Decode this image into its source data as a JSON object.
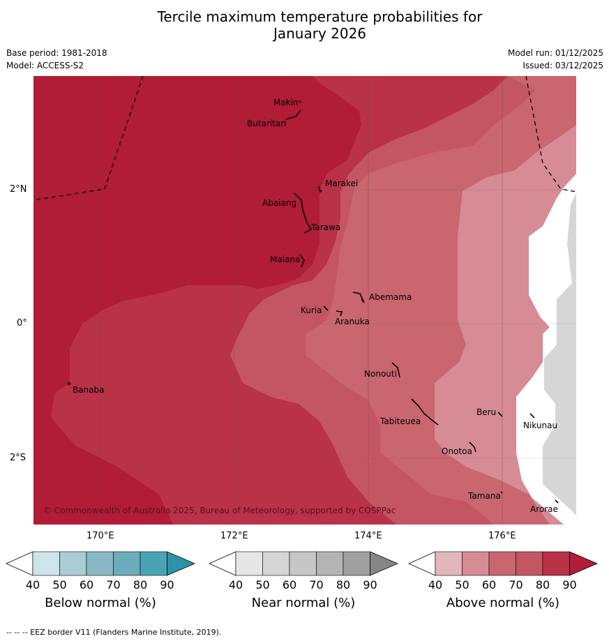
{
  "title_line1": "Tercile maximum temperature probabilities for",
  "title_line2": "January 2026",
  "meta": {
    "base_period": "Base period: 1981-2018",
    "model": "Model: ACCESS-S2",
    "model_run": "Model run: 01/12/2025",
    "issued": "Issued: 03/12/2025"
  },
  "axes": {
    "lat_labels": [
      "2°N",
      "0°",
      "2°S"
    ],
    "lon_labels": [
      "170°E",
      "172°E",
      "174°E",
      "176°E"
    ]
  },
  "places": [
    "Makin",
    "Butaritari",
    "Marakei",
    "Abaiang",
    "Tarawa",
    "Maiana",
    "Abemama",
    "Kuria",
    "Aranuka",
    "Banaba",
    "Nonouti",
    "Beru",
    "Nikunau",
    "Tabiteuea",
    "Onotoa",
    "Tamana",
    "Arorae"
  ],
  "copyright": "© Commonwealth of Australia 2025, Bureau of Meteorology, supported by COSPPac",
  "colorbars": [
    {
      "label": "Below normal (%)",
      "ticks": [
        "40",
        "50",
        "60",
        "70",
        "80",
        "90"
      ],
      "colors": [
        "#ffffff",
        "#cde4ea",
        "#a9ccd5",
        "#8ab8c5",
        "#6cadbc",
        "#4aa3b4",
        "#2b94a8"
      ]
    },
    {
      "label": "Near normal (%)",
      "ticks": [
        "40",
        "50",
        "60",
        "70",
        "80",
        "90"
      ],
      "colors": [
        "#ffffff",
        "#e6e6e6",
        "#d6d6d6",
        "#c6c6c6",
        "#b4b4b4",
        "#a0a0a0",
        "#868686"
      ]
    },
    {
      "label": "Above normal (%)",
      "ticks": [
        "40",
        "50",
        "60",
        "70",
        "80",
        "90"
      ],
      "colors": [
        "#ffffff",
        "#e2b7bc",
        "#d68b95",
        "#c9666f",
        "#c45664",
        "#b93248",
        "#b11c36"
      ]
    }
  ],
  "footer": "--  --  -- EEZ border V11 (Flanders Marine Institute, 2019)."
}
